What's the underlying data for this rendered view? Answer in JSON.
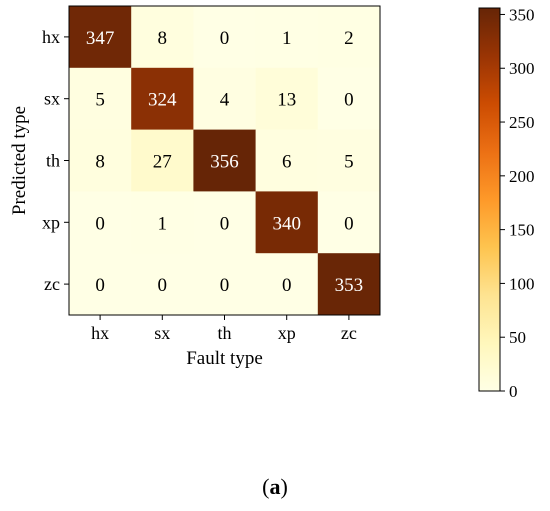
{
  "chart_data": {
    "type": "heatmap",
    "xlabel": "Fault type",
    "ylabel": "Predicted  type",
    "x_categories": [
      "hx",
      "sx",
      "th",
      "xp",
      "zc"
    ],
    "y_categories": [
      "hx",
      "sx",
      "th",
      "xp",
      "zc"
    ],
    "matrix": [
      [
        347,
        8,
        0,
        1,
        2
      ],
      [
        5,
        324,
        4,
        13,
        0
      ],
      [
        8,
        27,
        356,
        6,
        5
      ],
      [
        0,
        1,
        0,
        340,
        0
      ],
      [
        0,
        0,
        0,
        0,
        353
      ]
    ],
    "colormap": "YlOrBr",
    "color_range": [
      0,
      356
    ],
    "colorbar_ticks": [
      0,
      50,
      100,
      150,
      200,
      250,
      300,
      350
    ],
    "colors": {
      "stops": [
        "#ffffe5",
        "#fff7bc",
        "#fee391",
        "#fec44f",
        "#fe9929",
        "#ec7014",
        "#cc4c02",
        "#993404",
        "#662506"
      ]
    }
  },
  "caption": {
    "open": "(",
    "letter": "a",
    "close": ")"
  }
}
